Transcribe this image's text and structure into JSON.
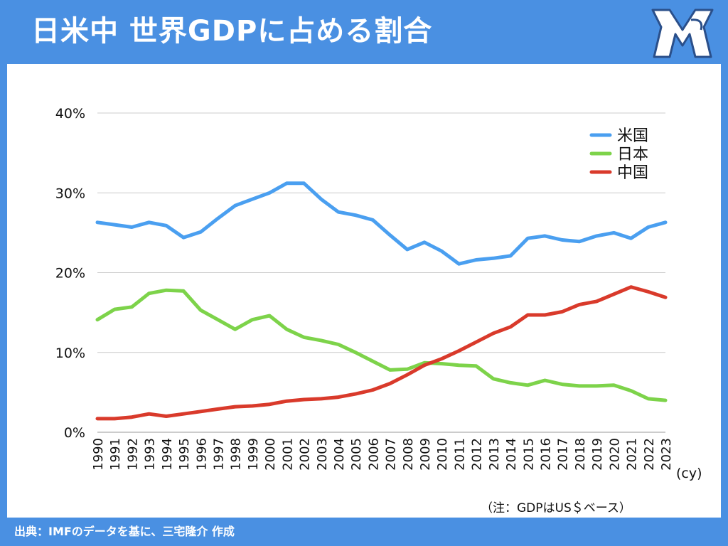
{
  "header": {
    "title": "日米中 世界GDPに占める割合",
    "logo_text": "MR"
  },
  "footer": {
    "source": "出典：IMFのデータを基に、三宅隆介 作成"
  },
  "note": "（注：GDPはUS＄ベース）",
  "colors": {
    "header_bg": "#4a90e2",
    "us": "#4a9ff0",
    "japan": "#7dd34a",
    "china": "#d93a2b",
    "grid": "#cccccc"
  },
  "chart_data": {
    "type": "line",
    "x_unit_label": "(cy)",
    "x": [
      "1990",
      "1991",
      "1992",
      "1993",
      "1994",
      "1995",
      "1996",
      "1997",
      "1998",
      "1999",
      "2000",
      "2001",
      "2002",
      "2003",
      "2004",
      "2005",
      "2006",
      "2007",
      "2008",
      "2009",
      "2010",
      "2011",
      "2012",
      "2013",
      "2014",
      "2015",
      "2016",
      "2017",
      "2018",
      "2019",
      "2020",
      "2021",
      "2022",
      "2023"
    ],
    "y_ticks": [
      "0%",
      "10%",
      "20%",
      "30%",
      "40%"
    ],
    "ylim": [
      0,
      40
    ],
    "grid": true,
    "legend_position": "top-right",
    "series": [
      {
        "name": "米国",
        "color_key": "us",
        "values": [
          26.3,
          26.0,
          25.7,
          26.3,
          25.9,
          24.4,
          25.1,
          26.8,
          28.4,
          29.2,
          30.0,
          31.2,
          31.2,
          29.2,
          27.6,
          27.2,
          26.6,
          24.7,
          22.9,
          23.8,
          22.7,
          21.1,
          21.6,
          21.8,
          22.1,
          24.3,
          24.6,
          24.1,
          23.9,
          24.6,
          25.0,
          24.3,
          25.7,
          26.3
        ]
      },
      {
        "name": "日本",
        "color_key": "japan",
        "values": [
          14.1,
          15.4,
          15.7,
          17.4,
          17.8,
          17.7,
          15.3,
          14.1,
          12.9,
          14.1,
          14.6,
          12.9,
          11.9,
          11.5,
          11.0,
          10.0,
          8.9,
          7.8,
          7.9,
          8.7,
          8.6,
          8.4,
          8.3,
          6.7,
          6.2,
          5.9,
          6.5,
          6.0,
          5.8,
          5.8,
          5.9,
          5.2,
          4.2,
          4.0
        ]
      },
      {
        "name": "中国",
        "color_key": "china",
        "values": [
          1.7,
          1.7,
          1.9,
          2.3,
          2.0,
          2.3,
          2.6,
          2.9,
          3.2,
          3.3,
          3.5,
          3.9,
          4.1,
          4.2,
          4.4,
          4.8,
          5.3,
          6.1,
          7.2,
          8.4,
          9.2,
          10.2,
          11.3,
          12.4,
          13.2,
          14.7,
          14.7,
          15.1,
          16.0,
          16.4,
          17.3,
          18.2,
          17.6,
          16.9
        ]
      }
    ]
  }
}
